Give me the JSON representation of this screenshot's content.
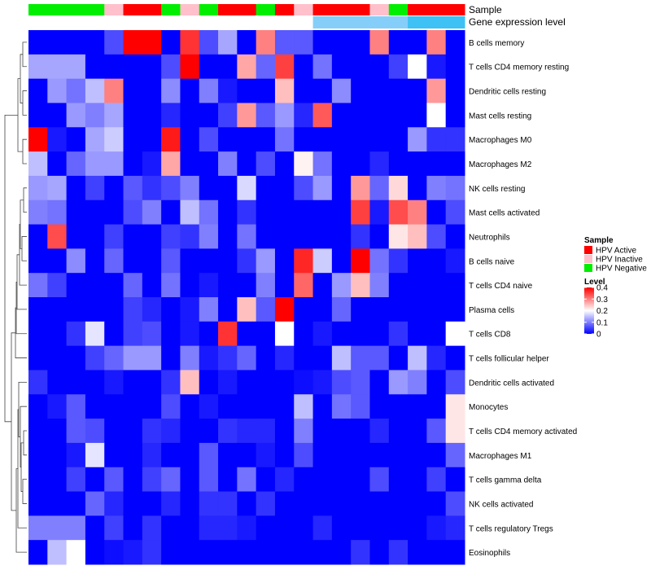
{
  "chart_data": {
    "type": "heatmap",
    "title": "",
    "annotation_labels": [
      "Sample",
      "Gene expression level"
    ],
    "rows": [
      "B cells memory",
      "T cells CD4 memory resting",
      "Dendritic cells resting",
      "Mast cells resting",
      "Macrophages M0",
      "Macrophages M2",
      "NK cells resting",
      "Mast cells activated",
      "Neutrophils",
      "B cells naive",
      "T cells CD4 naive",
      "Plasma cells",
      "T cells CD8",
      "T cells follicular helper",
      "Dendritic cells activated",
      "Monocytes",
      "T cells CD4 memory activated",
      "Macrophages M1",
      "T cells gamma delta",
      "NK cells activated",
      "T cells regulatory  Tregs",
      "Eosinophils"
    ],
    "sample_annotation": [
      "HPV Negative",
      "HPV Negative",
      "HPV Negative",
      "HPV Negative",
      "HPV Inactive",
      "HPV Active",
      "HPV Active",
      "HPV Negative",
      "HPV Inactive",
      "HPV Negative",
      "HPV Active",
      "HPV Active",
      "HPV Negative",
      "HPV Active",
      "HPV Inactive",
      "HPV Active",
      "HPV Active",
      "HPV Active",
      "HPV Inactive",
      "HPV Negative",
      "HPV Active",
      "HPV Active",
      "HPV Active"
    ],
    "expression_level_annotation": [
      0.0,
      0.0,
      0.0,
      0.0,
      0.0,
      0.0,
      0.0,
      0.0,
      0.0,
      0.0,
      0.0,
      0.0,
      0.0,
      0.0,
      0.0,
      0.08,
      0.08,
      0.08,
      0.08,
      0.08,
      0.12,
      0.12,
      0.12
    ],
    "values": [
      [
        0.0,
        0.0,
        0.0,
        0.0,
        0.06,
        0.4,
        0.4,
        0.0,
        0.36,
        0.06,
        0.13,
        0.0,
        0.3,
        0.07,
        0.07,
        0.0,
        0.0,
        0.0,
        0.3,
        0.0,
        0.0,
        0.3,
        0.0
      ],
      [
        0.13,
        0.13,
        0.13,
        0.0,
        0.0,
        0.0,
        0.0,
        0.06,
        0.4,
        0.0,
        0.0,
        0.27,
        0.08,
        0.35,
        0.0,
        0.09,
        0.0,
        0.0,
        0.0,
        0.05,
        0.2,
        0.02,
        0.0
      ],
      [
        0.0,
        0.12,
        0.09,
        0.15,
        0.3,
        0.0,
        0.0,
        0.11,
        0.0,
        0.1,
        0.02,
        0.0,
        0.0,
        0.25,
        0.0,
        0.0,
        0.11,
        0.0,
        0.0,
        0.0,
        0.0,
        0.28,
        0.0
      ],
      [
        0.0,
        0.0,
        0.12,
        0.1,
        0.13,
        0.0,
        0.0,
        0.03,
        0.0,
        0.0,
        0.05,
        0.28,
        0.07,
        0.12,
        0.03,
        0.33,
        0.0,
        0.0,
        0.0,
        0.0,
        0.0,
        0.2,
        0.0
      ],
      [
        0.4,
        0.02,
        0.0,
        0.13,
        0.16,
        0.0,
        0.0,
        0.38,
        0.0,
        0.06,
        0.0,
        0.0,
        0.0,
        0.09,
        0.0,
        0.0,
        0.0,
        0.0,
        0.0,
        0.0,
        0.12,
        0.04,
        0.04
      ],
      [
        0.15,
        0.0,
        0.08,
        0.12,
        0.12,
        0.0,
        0.02,
        0.27,
        0.0,
        0.0,
        0.1,
        0.0,
        0.06,
        0.0,
        0.21,
        0.09,
        0.0,
        0.0,
        0.03,
        0.0,
        0.0,
        0.0,
        0.0
      ],
      [
        0.12,
        0.13,
        0.0,
        0.05,
        0.0,
        0.07,
        0.04,
        0.06,
        0.1,
        0.0,
        0.0,
        0.17,
        0.0,
        0.0,
        0.06,
        0.12,
        0.0,
        0.28,
        0.08,
        0.23,
        0.0,
        0.1,
        0.09
      ],
      [
        0.1,
        0.09,
        0.0,
        0.0,
        0.0,
        0.06,
        0.1,
        0.0,
        0.15,
        0.09,
        0.0,
        0.04,
        0.0,
        0.0,
        0.0,
        0.0,
        0.0,
        0.35,
        0.02,
        0.34,
        0.3,
        0.0,
        0.06
      ],
      [
        0.0,
        0.34,
        0.0,
        0.0,
        0.05,
        0.0,
        0.0,
        0.05,
        0.04,
        0.1,
        0.0,
        0.09,
        0.0,
        0.0,
        0.0,
        0.0,
        0.0,
        0.04,
        0.0,
        0.22,
        0.25,
        0.06,
        0.0
      ],
      [
        0.0,
        0.0,
        0.11,
        0.0,
        0.08,
        0.0,
        0.0,
        0.07,
        0.0,
        0.0,
        0.0,
        0.04,
        0.12,
        0.0,
        0.37,
        0.16,
        0.0,
        0.4,
        0.09,
        0.04,
        0.0,
        0.0,
        0.02
      ],
      [
        0.09,
        0.05,
        0.0,
        0.0,
        0.0,
        0.08,
        0.0,
        0.09,
        0.0,
        0.02,
        0.0,
        0.0,
        0.1,
        0.0,
        0.32,
        0.0,
        0.12,
        0.25,
        0.1,
        0.0,
        0.0,
        0.0,
        0.0
      ],
      [
        0.0,
        0.0,
        0.0,
        0.0,
        0.0,
        0.05,
        0.03,
        0.0,
        0.02,
        0.1,
        0.0,
        0.25,
        0.07,
        0.4,
        0.0,
        0.0,
        0.08,
        0.0,
        0.0,
        0.0,
        0.0,
        0.0,
        0.0
      ],
      [
        0.0,
        0.0,
        0.04,
        0.18,
        0.0,
        0.05,
        0.06,
        0.0,
        0.02,
        0.0,
        0.36,
        0.0,
        0.0,
        0.2,
        0.0,
        0.02,
        0.0,
        0.0,
        0.0,
        0.04,
        0.0,
        0.0,
        0.2
      ],
      [
        0.0,
        0.0,
        0.0,
        0.05,
        0.08,
        0.12,
        0.12,
        0.0,
        0.1,
        0.02,
        0.04,
        0.08,
        0.0,
        0.03,
        0.0,
        0.0,
        0.15,
        0.07,
        0.07,
        0.0,
        0.15,
        0.03,
        0.0
      ],
      [
        0.04,
        0.0,
        0.0,
        0.0,
        0.02,
        0.0,
        0.0,
        0.04,
        0.25,
        0.0,
        0.02,
        0.0,
        0.0,
        0.0,
        0.01,
        0.02,
        0.06,
        0.07,
        0.0,
        0.12,
        0.1,
        0.0,
        0.06
      ],
      [
        0.0,
        0.02,
        0.07,
        0.0,
        0.0,
        0.0,
        0.0,
        0.06,
        0.0,
        0.02,
        0.0,
        0.0,
        0.0,
        0.0,
        0.15,
        0.0,
        0.09,
        0.07,
        0.0,
        0.0,
        0.0,
        0.0,
        0.22
      ],
      [
        0.0,
        0.0,
        0.07,
        0.06,
        0.0,
        0.0,
        0.04,
        0.03,
        0.0,
        0.0,
        0.04,
        0.03,
        0.03,
        0.0,
        0.1,
        0.0,
        0.0,
        0.0,
        0.03,
        0.0,
        0.0,
        0.07,
        0.22
      ],
      [
        0.0,
        0.0,
        0.02,
        0.18,
        0.0,
        0.0,
        0.03,
        0.0,
        0.0,
        0.07,
        0.0,
        0.0,
        0.02,
        0.0,
        0.06,
        0.0,
        0.0,
        0.0,
        0.0,
        0.0,
        0.0,
        0.0,
        0.08
      ],
      [
        0.0,
        0.0,
        0.05,
        0.0,
        0.07,
        0.0,
        0.05,
        0.08,
        0.0,
        0.07,
        0.0,
        0.09,
        0.0,
        0.03,
        0.0,
        0.0,
        0.0,
        0.0,
        0.06,
        0.0,
        0.0,
        0.05,
        0.0
      ],
      [
        0.0,
        0.0,
        0.0,
        0.08,
        0.03,
        0.0,
        0.0,
        0.03,
        0.0,
        0.04,
        0.04,
        0.0,
        0.04,
        0.0,
        0.0,
        0.0,
        0.0,
        0.0,
        0.0,
        0.0,
        0.0,
        0.0,
        0.06
      ],
      [
        0.1,
        0.1,
        0.1,
        0.0,
        0.05,
        0.0,
        0.04,
        0.0,
        0.0,
        0.03,
        0.03,
        0.02,
        0.0,
        0.0,
        0.0,
        0.03,
        0.0,
        0.0,
        0.0,
        0.0,
        0.0,
        0.02,
        0.03
      ],
      [
        0.0,
        0.15,
        0.2,
        0.0,
        0.01,
        0.02,
        0.04,
        0.0,
        0.0,
        0.0,
        0.0,
        0.0,
        0.0,
        0.0,
        0.0,
        0.0,
        0.0,
        0.04,
        0.0,
        0.04,
        0.0,
        0.0,
        0.0
      ]
    ],
    "sample_colors": {
      "HPV Active": "#ff0000",
      "HPV Inactive": "#ffc0cb",
      "HPV Negative": "#00ee00"
    },
    "expression_colors": {
      "low": "#ffffff",
      "mid": "#87cefa",
      "high": "#3ec1f5"
    },
    "scale_colors": {
      "low": "#0000ff",
      "mid": "#ffffff",
      "high": "#ff0000"
    },
    "legend": {
      "sample": {
        "title": "Sample",
        "entries": [
          "HPV Active",
          "HPV Inactive",
          "HPV Negative"
        ]
      },
      "level": {
        "title": "Level",
        "ticks": [
          "0.4",
          "0.3",
          "0.2",
          "0.1",
          "0"
        ],
        "tick_values": [
          0.4,
          0.3,
          0.2,
          0.1,
          0
        ],
        "range": [
          0,
          0.4
        ]
      }
    }
  }
}
